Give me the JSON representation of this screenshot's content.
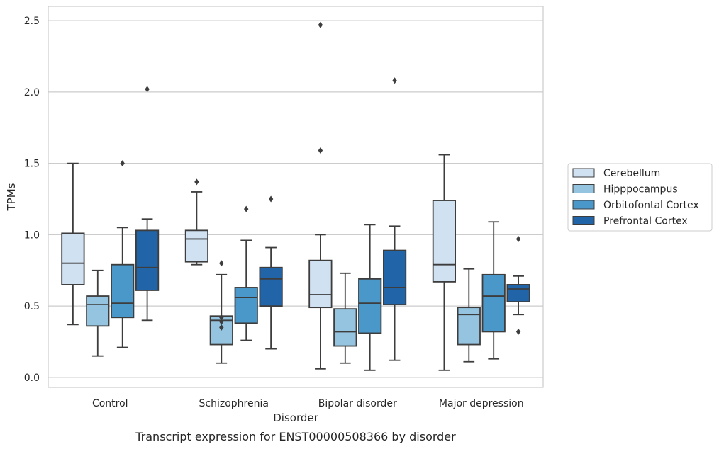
{
  "chart_data": {
    "type": "box",
    "caption": "Transcript expression for ENST00000508366 by disorder",
    "xlabel": "Disorder",
    "ylabel": "TPMs",
    "ylim": [
      -0.07,
      2.6
    ],
    "yticks": [
      0.0,
      0.5,
      1.0,
      1.5,
      2.0,
      2.5
    ],
    "ytick_labels": [
      "0.0",
      "0.5",
      "1.0",
      "1.5",
      "2.0",
      "2.5"
    ],
    "grid": "horizontal",
    "legend_position": "right",
    "categories": [
      "Control",
      "Schizophrenia",
      "Bipolar disorder",
      "Major depression"
    ],
    "series": [
      {
        "name": "Cerebellum",
        "color": "#d0e1f2",
        "boxes": [
          {
            "whisker_low": 0.37,
            "q1": 0.65,
            "median": 0.8,
            "q3": 1.01,
            "whisker_high": 1.5,
            "outliers": []
          },
          {
            "whisker_low": 0.79,
            "q1": 0.81,
            "median": 0.97,
            "q3": 1.03,
            "whisker_high": 1.3,
            "outliers": [
              1.37
            ]
          },
          {
            "whisker_low": 0.06,
            "q1": 0.49,
            "median": 0.58,
            "q3": 0.82,
            "whisker_high": 1.0,
            "outliers": [
              1.59,
              2.47
            ]
          },
          {
            "whisker_low": 0.05,
            "q1": 0.67,
            "median": 0.79,
            "q3": 1.24,
            "whisker_high": 1.56,
            "outliers": []
          }
        ]
      },
      {
        "name": "Hipppocampus",
        "color": "#94c4df",
        "boxes": [
          {
            "whisker_low": 0.15,
            "q1": 0.36,
            "median": 0.51,
            "q3": 0.57,
            "whisker_high": 0.75,
            "outliers": []
          },
          {
            "whisker_low": 0.1,
            "q1": 0.23,
            "median": 0.4,
            "q3": 0.43,
            "whisker_high": 0.72,
            "outliers": [
              0.8,
              0.42,
              0.39,
              0.35
            ]
          },
          {
            "whisker_low": 0.1,
            "q1": 0.22,
            "median": 0.32,
            "q3": 0.48,
            "whisker_high": 0.73,
            "outliers": []
          },
          {
            "whisker_low": 0.11,
            "q1": 0.23,
            "median": 0.44,
            "q3": 0.49,
            "whisker_high": 0.76,
            "outliers": []
          }
        ]
      },
      {
        "name": "Orbitofontal Cortex",
        "color": "#4a98c9",
        "boxes": [
          {
            "whisker_low": 0.21,
            "q1": 0.42,
            "median": 0.52,
            "q3": 0.79,
            "whisker_high": 1.05,
            "outliers": [
              1.5
            ]
          },
          {
            "whisker_low": 0.26,
            "q1": 0.38,
            "median": 0.56,
            "q3": 0.63,
            "whisker_high": 0.96,
            "outliers": [
              1.18
            ]
          },
          {
            "whisker_low": 0.05,
            "q1": 0.31,
            "median": 0.52,
            "q3": 0.69,
            "whisker_high": 1.07,
            "outliers": []
          },
          {
            "whisker_low": 0.13,
            "q1": 0.32,
            "median": 0.57,
            "q3": 0.72,
            "whisker_high": 1.09,
            "outliers": []
          }
        ]
      },
      {
        "name": "Prefrontal Cortex",
        "color": "#2264a8",
        "boxes": [
          {
            "whisker_low": 0.4,
            "q1": 0.61,
            "median": 0.77,
            "q3": 1.03,
            "whisker_high": 1.11,
            "outliers": [
              2.02
            ]
          },
          {
            "whisker_low": 0.2,
            "q1": 0.5,
            "median": 0.69,
            "q3": 0.77,
            "whisker_high": 0.91,
            "outliers": [
              1.25
            ]
          },
          {
            "whisker_low": 0.12,
            "q1": 0.51,
            "median": 0.63,
            "q3": 0.89,
            "whisker_high": 1.06,
            "outliers": [
              2.08
            ]
          },
          {
            "whisker_low": 0.44,
            "q1": 0.53,
            "median": 0.62,
            "q3": 0.65,
            "whisker_high": 0.71,
            "outliers": [
              0.97,
              0.32
            ]
          }
        ]
      }
    ]
  }
}
